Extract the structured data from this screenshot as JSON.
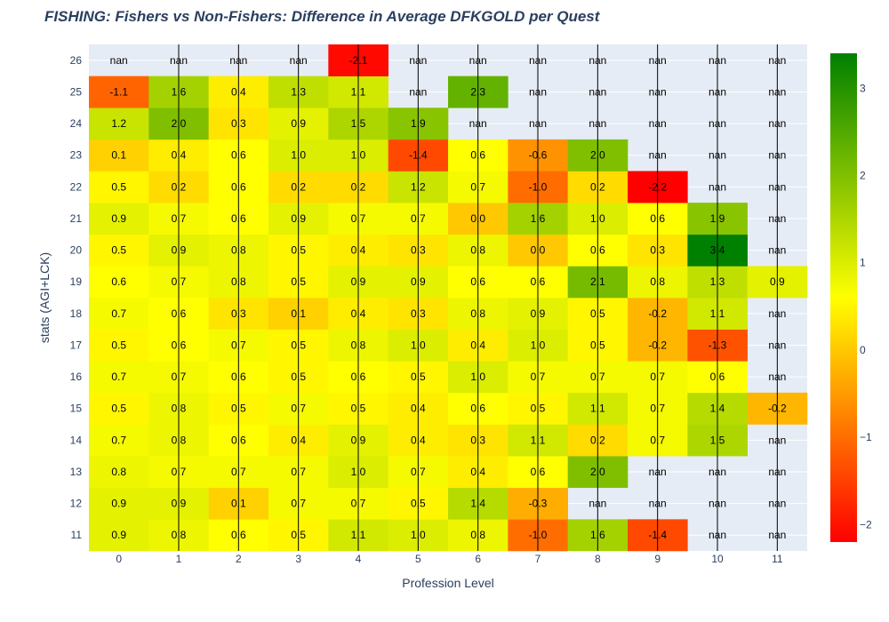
{
  "chart_data": {
    "type": "heatmap",
    "title": "FISHING: Fishers vs Non-Fishers: Difference in Average DFKGOLD per Quest",
    "xlabel": "Profession Level",
    "ylabel": "stats (AGI+LCK)",
    "x": [
      "0",
      "1",
      "2",
      "3",
      "4",
      "5",
      "6",
      "7",
      "8",
      "9",
      "10",
      "11"
    ],
    "y": [
      "11",
      "12",
      "13",
      "14",
      "15",
      "16",
      "17",
      "18",
      "19",
      "20",
      "21",
      "22",
      "23",
      "24",
      "25",
      "26"
    ],
    "z": [
      [
        0.9,
        0.8,
        0.6,
        0.5,
        1.1,
        1.0,
        0.8,
        -1.0,
        1.6,
        -1.4,
        null,
        null
      ],
      [
        0.9,
        0.9,
        0.1,
        0.7,
        0.7,
        0.5,
        1.4,
        -0.3,
        null,
        null,
        null,
        null
      ],
      [
        0.8,
        0.7,
        0.7,
        0.7,
        1.0,
        0.7,
        0.4,
        0.6,
        2.0,
        null,
        null,
        null
      ],
      [
        0.7,
        0.8,
        0.6,
        0.4,
        0.9,
        0.4,
        0.3,
        1.1,
        0.2,
        0.7,
        1.5,
        null
      ],
      [
        0.5,
        0.8,
        0.5,
        0.7,
        0.5,
        0.4,
        0.6,
        0.5,
        1.1,
        0.7,
        1.4,
        -0.2
      ],
      [
        0.7,
        0.7,
        0.6,
        0.5,
        0.6,
        0.5,
        1.0,
        0.7,
        0.7,
        0.7,
        0.6,
        null
      ],
      [
        0.5,
        0.6,
        0.7,
        0.5,
        0.8,
        1.0,
        0.4,
        1.0,
        0.5,
        -0.2,
        -1.3,
        null
      ],
      [
        0.7,
        0.6,
        0.3,
        0.1,
        0.4,
        0.3,
        0.8,
        0.9,
        0.5,
        -0.2,
        1.1,
        null
      ],
      [
        0.6,
        0.7,
        0.8,
        0.5,
        0.9,
        0.9,
        0.6,
        0.6,
        2.1,
        0.8,
        1.3,
        0.9
      ],
      [
        0.5,
        0.9,
        0.8,
        0.5,
        0.4,
        0.3,
        0.8,
        -0.0,
        0.6,
        0.3,
        3.4,
        null
      ],
      [
        0.9,
        0.7,
        0.6,
        0.9,
        0.7,
        0.7,
        -0.0,
        1.6,
        1.0,
        0.6,
        1.9,
        null
      ],
      [
        0.5,
        0.2,
        0.6,
        0.2,
        0.2,
        1.2,
        0.7,
        -1.0,
        0.2,
        -2.2,
        null,
        null
      ],
      [
        0.1,
        0.4,
        0.6,
        1.0,
        1.0,
        -1.4,
        0.6,
        -0.6,
        2.0,
        null,
        null,
        null
      ],
      [
        1.2,
        2.0,
        0.3,
        0.9,
        1.5,
        1.9,
        null,
        null,
        null,
        null,
        null,
        null
      ],
      [
        -1.1,
        1.6,
        0.4,
        1.3,
        1.1,
        null,
        2.3,
        null,
        null,
        null,
        null,
        null
      ],
      [
        null,
        null,
        null,
        null,
        -2.1,
        null,
        null,
        null,
        null,
        null,
        null,
        null
      ]
    ],
    "missing_label": "nan",
    "zmin": -2.2,
    "zmax": 3.4,
    "colorscale": [
      "#ff0000",
      "#ffff00",
      "#008000"
    ],
    "colorbar_ticks": [
      3,
      2,
      1,
      0,
      -1,
      -2
    ],
    "colorbar_tick_labels": [
      "3",
      "2",
      "1",
      "0",
      "−1",
      "−2"
    ],
    "plot_background": "#e5ecf6",
    "grid_color": "#ffffff",
    "line_color": "#000000"
  }
}
